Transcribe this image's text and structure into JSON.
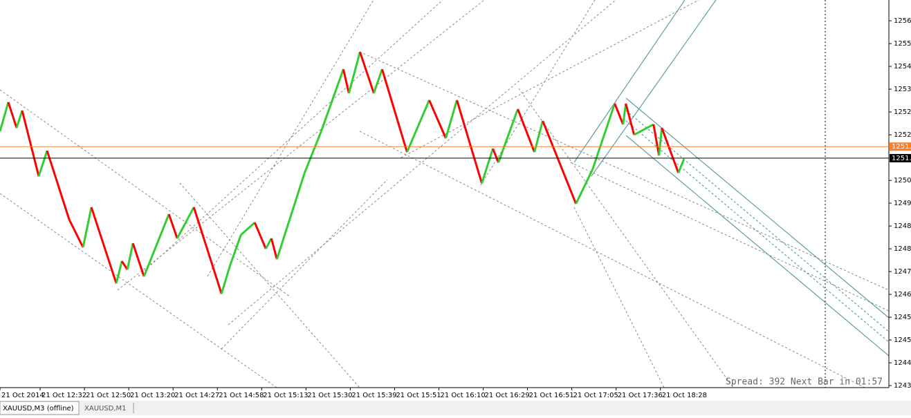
{
  "chart_data": {
    "type": "renko-line",
    "x": [
      0,
      3,
      6,
      8,
      14,
      17,
      25,
      30,
      33,
      42,
      44,
      46,
      48,
      52,
      55,
      61,
      64,
      70,
      80,
      83,
      87,
      92,
      96,
      98,
      100,
      110,
      116,
      124,
      126,
      130,
      135,
      138,
      147,
      155,
      161,
      165,
      174,
      178,
      180,
      187,
      193,
      196,
      208,
      214,
      222,
      225,
      226,
      229,
      236,
      238,
      239,
      245,
      247
    ],
    "series": [
      {
        "name": "XAUUSD,M3",
        "colors": {
          "up": "#32cd32",
          "down": "#ff0000"
        },
        "values": [
          1252.26,
          1253.27,
          1252.38,
          1252.98,
          1250.7,
          1251.59,
          1249.2,
          1248.24,
          1249.63,
          1246.99,
          1247.76,
          1247.47,
          1248.38,
          1247.23,
          1247.95,
          1249.39,
          1248.55,
          1249.63,
          1246.63,
          1247.59,
          1248.67,
          1249.1,
          1248.19,
          1248.55,
          1247.83,
          1250.82,
          1252.26,
          1254.41,
          1253.58,
          1255.01,
          1253.58,
          1254.41,
          1251.54,
          1253.34,
          1252.02,
          1253.34,
          1250.46,
          1251.66,
          1251.18,
          1253.03,
          1251.54,
          1252.62,
          1249.75,
          1250.94,
          1253.22,
          1252.5,
          1253.22,
          1252.14,
          1252.5,
          1251.42,
          1252.38,
          1250.82,
          1251.3
        ]
      }
    ],
    "xlim": [
      0,
      321
    ],
    "ylim": [
      1243.38,
      1256.81
    ],
    "xticks": [
      {
        "value": 0,
        "label": "21 Oct 2014"
      },
      {
        "value": 14.5,
        "label": "21 Oct 12:32"
      },
      {
        "value": 30.5,
        "label": "21 Oct 12:50"
      },
      {
        "value": 46.5,
        "label": "21 Oct 13:20"
      },
      {
        "value": 62.5,
        "label": "21 Oct 14:27"
      },
      {
        "value": 78.5,
        "label": "21 Oct 14:58"
      },
      {
        "value": 94.5,
        "label": "21 Oct 15:13"
      },
      {
        "value": 110.5,
        "label": "21 Oct 15:30"
      },
      {
        "value": 126.5,
        "label": "21 Oct 15:39"
      },
      {
        "value": 142.5,
        "label": "21 Oct 15:51"
      },
      {
        "value": 158.5,
        "label": "21 Oct 16:10"
      },
      {
        "value": 174.5,
        "label": "21 Oct 16:29"
      },
      {
        "value": 190.5,
        "label": "21 Oct 16:51"
      },
      {
        "value": 206.5,
        "label": "21 Oct 17:05"
      },
      {
        "value": 222.5,
        "label": "21 Oct 17:36"
      },
      {
        "value": 238.5,
        "label": "21 Oct 18:28"
      }
    ],
    "yticks": [
      {
        "value": 1256.09,
        "label": "1256.0"
      },
      {
        "value": 1255.3,
        "label": "1255."
      },
      {
        "value": 1254.51,
        "label": "1254."
      },
      {
        "value": 1253.72,
        "label": "1253."
      },
      {
        "value": 1252.93,
        "label": "1252."
      },
      {
        "value": 1252.14,
        "label": "1252."
      },
      {
        "value": 1250.56,
        "label": "1250."
      },
      {
        "value": 1249.77,
        "label": "1249."
      },
      {
        "value": 1248.98,
        "label": "1248."
      },
      {
        "value": 1248.19,
        "label": "1248."
      },
      {
        "value": 1247.4,
        "label": "1247."
      },
      {
        "value": 1246.61,
        "label": "1246."
      },
      {
        "value": 1245.82,
        "label": "1245."
      },
      {
        "value": 1245.03,
        "label": "1245."
      },
      {
        "value": 1244.24,
        "label": "1244."
      },
      {
        "value": 1243.45,
        "label": "1243."
      }
    ],
    "price_lines": [
      {
        "value": 1251.73,
        "label": "1251.",
        "color": "#ff7f27"
      },
      {
        "value": 1251.33,
        "label": "1251.",
        "color": "#000000"
      }
    ],
    "info": "Spread: 392 Next Bar in 01:57"
  },
  "tabs": [
    "XAUUSD,M3 (offline)",
    "XAUUSD,M1"
  ]
}
